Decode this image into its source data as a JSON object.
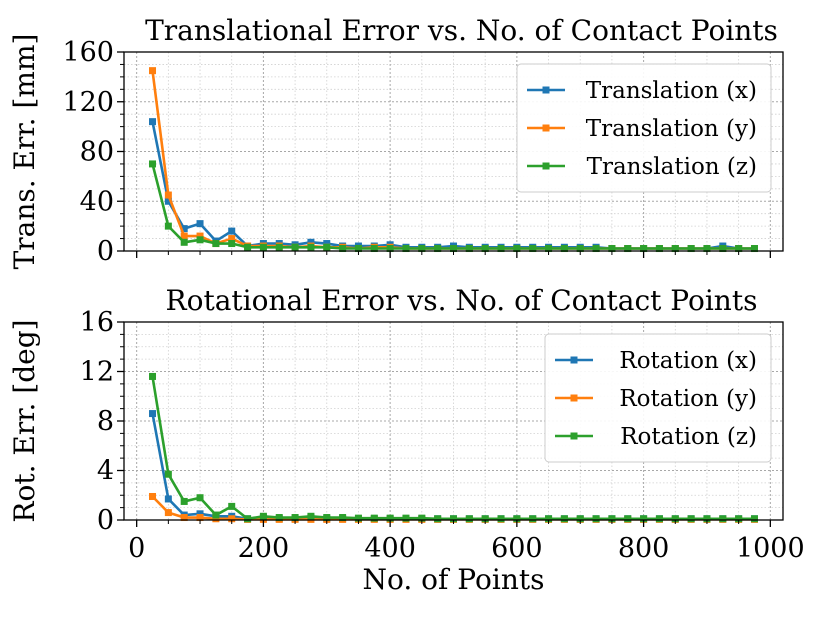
{
  "chart_data": [
    {
      "type": "line",
      "title": "Translational Error vs. No. of Contact Points",
      "xlabel": "",
      "ylabel": "Trans. Err. [mm]",
      "xlim": [
        -20,
        1020
      ],
      "ylim": [
        0,
        160
      ],
      "yticks": [
        0,
        40,
        80,
        120,
        160
      ],
      "xticks": [
        0,
        200,
        400,
        600,
        800,
        1000
      ],
      "show_xtick_labels": false,
      "grid": "major and minor, dotted",
      "legend_position": "top-right",
      "x": [
        25,
        50,
        75,
        100,
        125,
        150,
        175,
        200,
        225,
        250,
        275,
        300,
        325,
        350,
        375,
        400,
        425,
        450,
        475,
        500,
        525,
        550,
        575,
        600,
        625,
        650,
        675,
        700,
        725,
        750,
        775,
        800,
        825,
        850,
        875,
        900,
        925,
        950,
        975
      ],
      "series": [
        {
          "name": "Translation (x)",
          "color": "#1f77b4",
          "values": [
            104,
            40,
            18,
            22,
            8,
            16,
            4,
            6,
            6,
            5,
            7,
            6,
            4,
            4,
            4,
            5,
            3,
            3,
            3,
            4,
            3,
            3,
            3,
            3,
            3,
            3,
            3,
            3,
            3,
            2,
            2,
            2,
            2,
            2,
            2,
            2,
            4,
            2,
            2
          ]
        },
        {
          "name": "Translation (y)",
          "color": "#ff7f0e",
          "values": [
            145,
            45,
            12,
            12,
            6,
            10,
            4,
            4,
            4,
            3,
            4,
            3,
            3,
            2,
            3,
            3,
            2,
            2,
            2,
            2,
            2,
            2,
            2,
            2,
            2,
            2,
            2,
            2,
            2,
            2,
            2,
            2,
            2,
            2,
            2,
            2,
            2,
            2,
            2
          ]
        },
        {
          "name": "Translation (z)",
          "color": "#2ca02c",
          "values": [
            70,
            20,
            7,
            9,
            6,
            6,
            3,
            3,
            3,
            3,
            3,
            3,
            2,
            2,
            2,
            2,
            2,
            2,
            2,
            2,
            2,
            2,
            2,
            2,
            2,
            2,
            2,
            2,
            2,
            2,
            2,
            2,
            2,
            2,
            2,
            2,
            2,
            2,
            2
          ]
        }
      ]
    },
    {
      "type": "line",
      "title": "Rotational Error vs. No. of Contact Points",
      "xlabel": "No. of Points",
      "ylabel": "Rot. Err. [deg]",
      "xlim": [
        -20,
        1020
      ],
      "ylim": [
        0,
        16
      ],
      "yticks": [
        0,
        4,
        8,
        12,
        16
      ],
      "xticks": [
        0,
        200,
        400,
        600,
        800,
        1000
      ],
      "show_xtick_labels": true,
      "grid": "major and minor, dotted",
      "legend_position": "top-right",
      "x": [
        25,
        50,
        75,
        100,
        125,
        150,
        175,
        200,
        225,
        250,
        275,
        300,
        325,
        350,
        375,
        400,
        425,
        450,
        475,
        500,
        525,
        550,
        575,
        600,
        625,
        650,
        675,
        700,
        725,
        750,
        775,
        800,
        825,
        850,
        875,
        900,
        925,
        950,
        975
      ],
      "series": [
        {
          "name": "Rotation (x)",
          "color": "#1f77b4",
          "values": [
            8.6,
            1.7,
            0.4,
            0.5,
            0.3,
            0.3,
            0.1,
            0.2,
            0.1,
            0.1,
            0.2,
            0.1,
            0.1,
            0.1,
            0.1,
            0.1,
            0.1,
            0.1,
            0.1,
            0.1,
            0.1,
            0.1,
            0.1,
            0.1,
            0.1,
            0.1,
            0.1,
            0.1,
            0.1,
            0.1,
            0.1,
            0.1,
            0.1,
            0.1,
            0.1,
            0.1,
            0.1,
            0.1,
            0.1
          ]
        },
        {
          "name": "Rotation (y)",
          "color": "#ff7f0e",
          "values": [
            1.9,
            0.6,
            0.2,
            0.2,
            0.1,
            0.1,
            0.05,
            0.05,
            0.05,
            0.05,
            0.05,
            0.05,
            0.05,
            0.05,
            0.05,
            0.05,
            0.05,
            0.05,
            0.05,
            0.05,
            0.05,
            0.05,
            0.05,
            0.05,
            0.05,
            0.05,
            0.05,
            0.05,
            0.05,
            0.05,
            0.05,
            0.05,
            0.05,
            0.05,
            0.05,
            0.05,
            0.05,
            0.05,
            0.05
          ]
        },
        {
          "name": "Rotation (z)",
          "color": "#2ca02c",
          "values": [
            11.6,
            3.7,
            1.5,
            1.8,
            0.4,
            1.1,
            0.1,
            0.3,
            0.2,
            0.2,
            0.3,
            0.2,
            0.2,
            0.15,
            0.15,
            0.15,
            0.15,
            0.15,
            0.1,
            0.1,
            0.1,
            0.1,
            0.1,
            0.1,
            0.1,
            0.1,
            0.1,
            0.1,
            0.1,
            0.1,
            0.1,
            0.1,
            0.1,
            0.1,
            0.1,
            0.1,
            0.1,
            0.1,
            0.1
          ]
        }
      ]
    }
  ]
}
